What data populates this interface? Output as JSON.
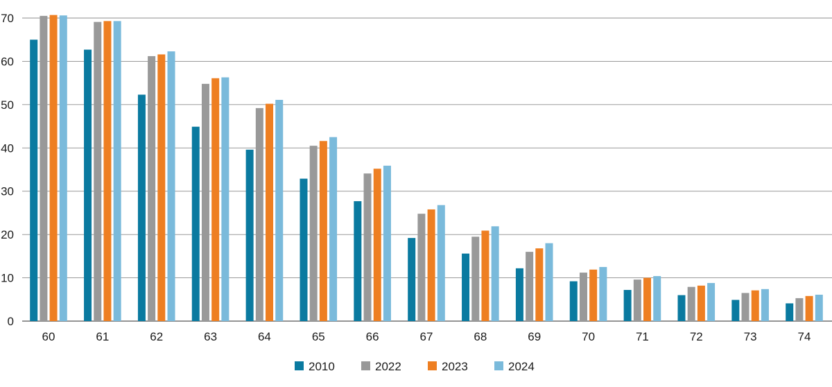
{
  "chart_data": {
    "type": "bar",
    "title": "",
    "xlabel": "",
    "ylabel": "",
    "categories": [
      "60",
      "61",
      "62",
      "63",
      "64",
      "65",
      "66",
      "67",
      "68",
      "69",
      "70",
      "71",
      "72",
      "73",
      "74"
    ],
    "ylim": [
      0,
      70
    ],
    "yticks": [
      0,
      10,
      20,
      30,
      40,
      50,
      60,
      70
    ],
    "grid": true,
    "legend_position": "bottom",
    "series": [
      {
        "name": "2010",
        "color": "#0a7aa0",
        "values": [
          65.0,
          62.7,
          52.3,
          44.9,
          39.6,
          32.9,
          27.7,
          19.2,
          15.6,
          12.2,
          9.2,
          7.2,
          6.0,
          4.9,
          4.1
        ]
      },
      {
        "name": "2022",
        "color": "#999999",
        "values": [
          70.5,
          69.1,
          61.2,
          54.8,
          49.2,
          40.5,
          34.1,
          24.8,
          19.5,
          16.0,
          11.2,
          9.6,
          7.9,
          6.5,
          5.3
        ]
      },
      {
        "name": "2023",
        "color": "#ee7f22",
        "values": [
          70.7,
          69.3,
          61.6,
          56.1,
          50.2,
          41.6,
          35.2,
          25.8,
          20.9,
          16.8,
          11.9,
          10.0,
          8.2,
          7.1,
          5.8
        ]
      },
      {
        "name": "2024",
        "color": "#7abadb",
        "values": [
          70.6,
          69.3,
          62.3,
          56.3,
          51.1,
          42.5,
          35.9,
          26.8,
          21.9,
          18.0,
          12.5,
          10.4,
          8.8,
          7.4,
          6.1
        ]
      }
    ]
  }
}
